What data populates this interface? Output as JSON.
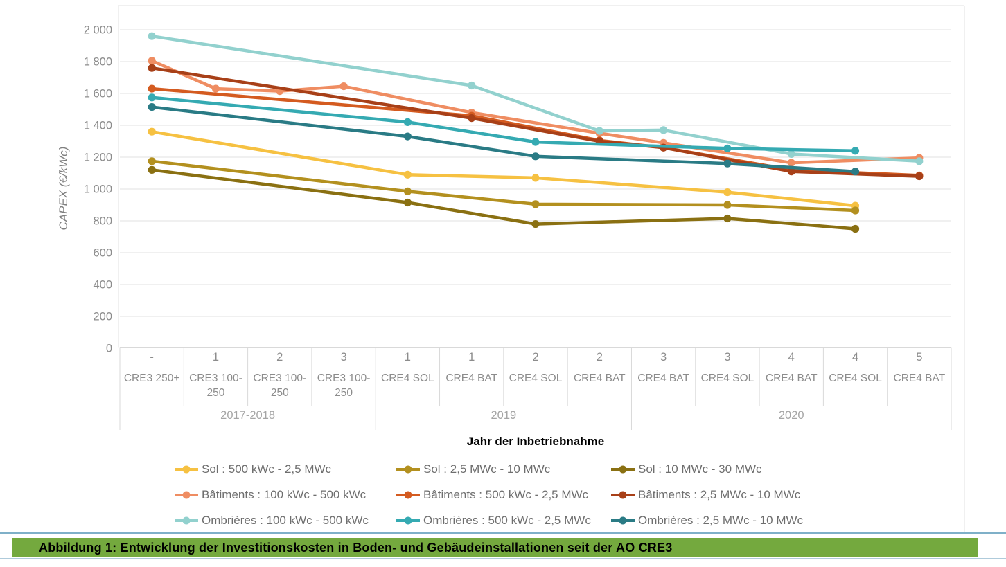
{
  "caption": {
    "text": "Abbildung 1: Entwicklung der Investitionskosten in Boden- und Gebäudeinstallationen seit der AO CRE3"
  },
  "colors": {
    "caption_bg": "#74a93e",
    "separator_top": "#7fb0c8",
    "separator_bottom": "#afcbdb",
    "grid": "#e7e7e7",
    "table_border": "#d9d9d9",
    "frame": "#ececec",
    "tick_text": "#8c8c8c",
    "group_text": "#a5a5a5",
    "legend_text": "#6e6e6e",
    "axis_title_text": "#7f7f7f",
    "x_title_text": "#000000"
  },
  "chart_data": {
    "type": "line",
    "title": "",
    "ylabel": "CAPEX (€/kWc)",
    "xlabel": "Jahr der Inbetriebnahme",
    "ylim": [
      0,
      2000
    ],
    "ytick_step": 200,
    "ytick_labels": [
      "0",
      "200",
      "400",
      "600",
      "800",
      "1 000",
      "1 200",
      "1 400",
      "1 600",
      "1 800",
      "2 000"
    ],
    "grid": true,
    "legend_position": "bottom",
    "categories": [
      {
        "period": "-",
        "auction": "CRE3 250+"
      },
      {
        "period": "1",
        "auction": "CRE3 100-250"
      },
      {
        "period": "2",
        "auction": "CRE3 100-250"
      },
      {
        "period": "3",
        "auction": "CRE3 100-250"
      },
      {
        "period": "1",
        "auction": "CRE4 SOL"
      },
      {
        "period": "1",
        "auction": "CRE4 BAT"
      },
      {
        "period": "2",
        "auction": "CRE4 SOL"
      },
      {
        "period": "2",
        "auction": "CRE4 BAT"
      },
      {
        "period": "3",
        "auction": "CRE4 BAT"
      },
      {
        "period": "3",
        "auction": "CRE4 SOL"
      },
      {
        "period": "4",
        "auction": "CRE4 BAT"
      },
      {
        "period": "4",
        "auction": "CRE4 SOL"
      },
      {
        "period": "5",
        "auction": "CRE4 BAT"
      }
    ],
    "groups": [
      {
        "label": "2017-2018",
        "from": 0,
        "to": 3
      },
      {
        "label": "2019",
        "from": 4,
        "to": 7
      },
      {
        "label": "2020",
        "from": 8,
        "to": 12
      }
    ],
    "series": [
      {
        "name": "Sol : 500 kWc - 2,5 MWc",
        "color": "#f6c142",
        "values": [
          1360,
          null,
          null,
          null,
          1090,
          null,
          1070,
          null,
          null,
          980,
          null,
          895,
          null
        ]
      },
      {
        "name": "Sol : 2,5 MWc - 10 MWc",
        "color": "#b3901f",
        "values": [
          1175,
          null,
          null,
          null,
          985,
          null,
          905,
          null,
          null,
          900,
          null,
          865,
          null
        ]
      },
      {
        "name": "Sol : 10 MWc - 30 MWc",
        "color": "#8a7012",
        "values": [
          1120,
          null,
          null,
          null,
          915,
          null,
          780,
          null,
          null,
          815,
          null,
          750,
          null
        ]
      },
      {
        "name": "Bâtiments : 100 kWc - 500 kWc",
        "color": "#ef8d62",
        "values": [
          1805,
          1630,
          1615,
          1645,
          null,
          1480,
          null,
          1350,
          1290,
          null,
          1165,
          null,
          1195
        ]
      },
      {
        "name": "Bâtiments : 500 kWc - 2,5 MWc",
        "color": "#d45b20",
        "values": [
          1630,
          null,
          null,
          null,
          null,
          1460,
          null,
          1305,
          1260,
          null,
          1120,
          null,
          1085
        ]
      },
      {
        "name": "Bâtiments : 2,5 MWc - 10 MWc",
        "color": "#a84018",
        "values": [
          1760,
          null,
          null,
          null,
          null,
          1445,
          null,
          1300,
          1260,
          null,
          1110,
          null,
          1080
        ]
      },
      {
        "name": "Ombrières : 100 kWc - 500 kWc",
        "color": "#92d1ce",
        "values": [
          1960,
          null,
          null,
          null,
          null,
          1650,
          null,
          1365,
          1370,
          null,
          1220,
          null,
          1175
        ]
      },
      {
        "name": "Ombrières : 500 kWc - 2,5 MWc",
        "color": "#35aab2",
        "values": [
          1575,
          null,
          null,
          null,
          1420,
          null,
          1295,
          null,
          null,
          1255,
          null,
          1240,
          null
        ]
      },
      {
        "name": "Ombrières : 2,5 MWc - 10 MWc",
        "color": "#2a7b85",
        "values": [
          1515,
          null,
          null,
          null,
          1330,
          null,
          1205,
          null,
          null,
          1160,
          null,
          1110,
          null
        ]
      }
    ]
  }
}
